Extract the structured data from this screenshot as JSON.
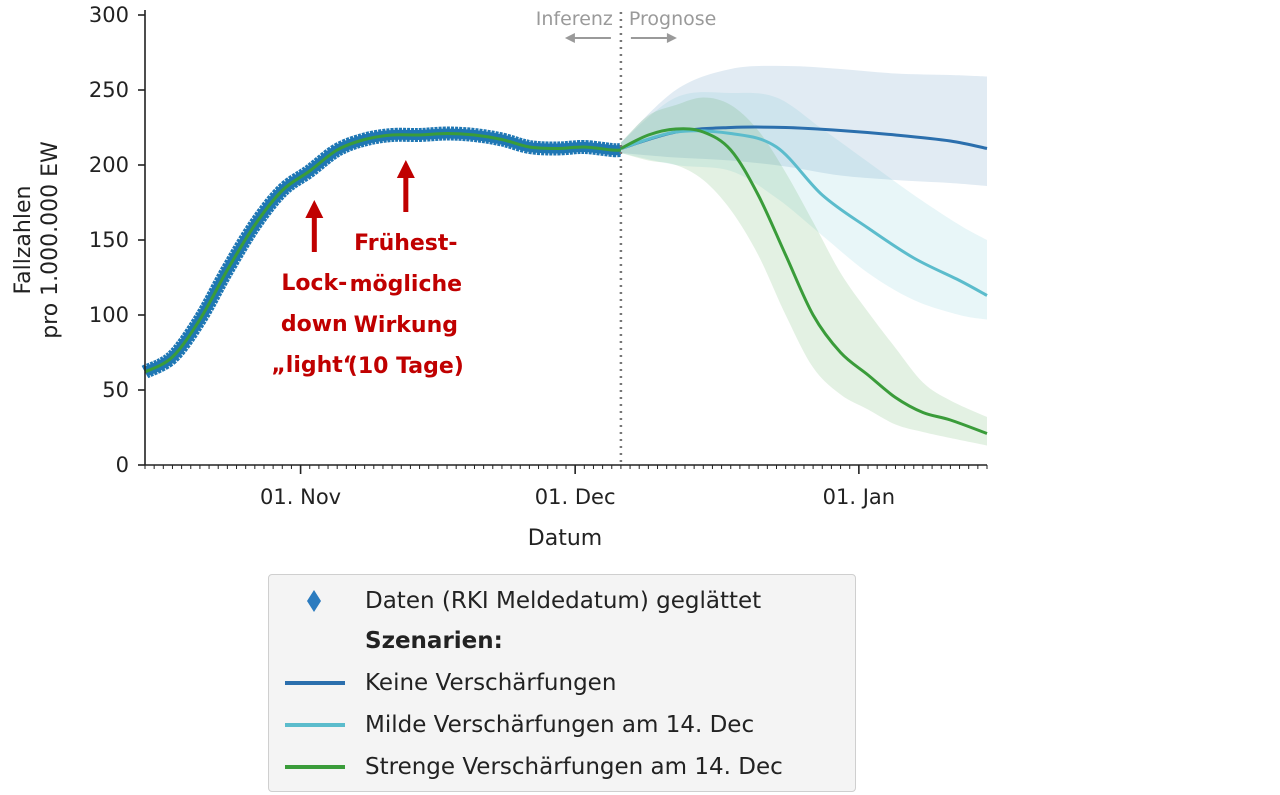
{
  "chart_data": {
    "type": "line",
    "xlabel": "Datum",
    "ylabel_line1": "Fallzahlen",
    "ylabel_line2": "pro 1.000.000 EW",
    "ylim": [
      0,
      300
    ],
    "yticks": [
      "0",
      "50",
      "100",
      "150",
      "200",
      "250",
      "300"
    ],
    "xticks": [
      "01. Nov",
      "01. Dec",
      "01. Jan"
    ],
    "x_range_days_from_nov1": [
      -17,
      75
    ],
    "divider_day": 35,
    "divider_labels": {
      "left": "Inferenz",
      "right": "Prognose"
    },
    "annotations": [
      {
        "lines": [
          "Lock-",
          "down",
          "„light“"
        ],
        "day": 1.5
      },
      {
        "lines": [
          "Frühest-",
          "mögliche",
          "Wirkung",
          "(10 Tage)"
        ],
        "day": 11.5
      }
    ],
    "data_series": {
      "name": "Daten (RKI Meldedatum) geglättet",
      "color": "#1f77b4",
      "x_days": [
        -17,
        -14,
        -11,
        -8,
        -5,
        -2,
        1,
        4,
        7,
        10,
        13,
        16,
        19,
        22,
        25,
        28,
        31,
        34,
        35
      ],
      "y": [
        62,
        72,
        97,
        130,
        160,
        183,
        196,
        210,
        217,
        220,
        220,
        221,
        220,
        217,
        212,
        211,
        212,
        210,
        210
      ]
    },
    "series": [
      {
        "name": "Keine Verschärfungen",
        "color": "#2b6fad",
        "x_days": [
          35,
          41,
          47,
          53,
          59,
          65,
          71,
          75
        ],
        "y": [
          211,
          222,
          225,
          225,
          223,
          220,
          216,
          211
        ],
        "band_low": [
          208,
          205,
          203,
          199,
          193,
          190,
          188,
          186
        ],
        "band_high": [
          215,
          250,
          264,
          266,
          264,
          261,
          260,
          259
        ]
      },
      {
        "name": "Milde Verschärfungen am 14. Dec",
        "color": "#5bbccc",
        "x_days": [
          35,
          41,
          47,
          52,
          57,
          62,
          67,
          72,
          75
        ],
        "y": [
          211,
          222,
          221,
          212,
          180,
          158,
          138,
          123,
          113
        ],
        "band_low": [
          208,
          200,
          196,
          178,
          153,
          128,
          110,
          100,
          97
        ],
        "band_high": [
          215,
          245,
          248,
          245,
          224,
          202,
          180,
          160,
          150
        ]
      },
      {
        "name": "Strenge Verschärfungen am 14. Dec",
        "color": "#3a9c3a",
        "x_days": [
          35,
          38,
          41,
          44,
          47,
          50,
          53,
          56,
          59,
          62,
          65,
          68,
          71,
          75
        ],
        "y": [
          211,
          220,
          224,
          222,
          210,
          180,
          140,
          100,
          75,
          60,
          45,
          35,
          30,
          21
        ],
        "band_low": [
          208,
          203,
          200,
          190,
          170,
          140,
          100,
          65,
          47,
          37,
          27,
          22,
          18,
          13
        ],
        "band_high": [
          215,
          233,
          240,
          245,
          240,
          223,
          195,
          162,
          128,
          102,
          78,
          55,
          43,
          32
        ]
      }
    ],
    "legend": {
      "placement": "bottom-center",
      "heading": "Szenarien:"
    }
  }
}
